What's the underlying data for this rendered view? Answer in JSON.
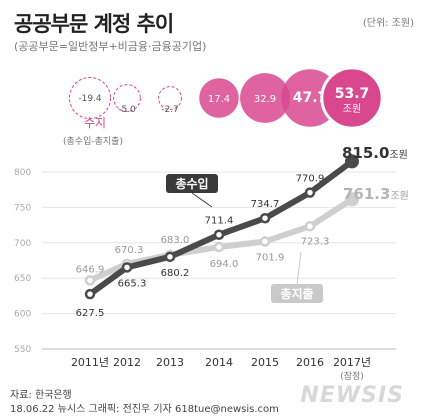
{
  "header": {
    "title": "공공부문 계정 추이",
    "unit": "(단위: 조원)",
    "subtitle": "(공공부문=일반정부+비금융·금융공기업)"
  },
  "balance": {
    "label": "수지",
    "sublabel": "(총수입-총지출)",
    "unit_on_last": "조원",
    "values": [
      -19.4,
      -5.0,
      -2.7,
      17.4,
      32.9,
      47.7,
      53.7
    ],
    "value_labels": [
      "-19.4",
      "-5.0",
      "-2.7",
      "17.4",
      "32.9",
      "47.7",
      "53.7"
    ],
    "colors": {
      "positive": "#d9488f",
      "negative_stroke": "#d9488f"
    }
  },
  "chart_data": {
    "type": "line",
    "categories": [
      "2011년",
      "2012",
      "2013",
      "2014",
      "2015",
      "2016",
      "2017년"
    ],
    "category_note": "(잠정)",
    "ylim": [
      550,
      800
    ],
    "yticks": [
      550,
      600,
      650,
      700,
      750,
      800
    ],
    "grid": true,
    "series": [
      {
        "name": "총수입",
        "values": [
          627.5,
          665.3,
          680.2,
          711.4,
          734.7,
          770.9,
          815.0
        ],
        "labels": [
          "627.5",
          "665.3",
          "680.2",
          "711.4",
          "734.7",
          "770.9",
          "815.0"
        ],
        "last_unit": "조원",
        "color": "#4a4a4a"
      },
      {
        "name": "총지출",
        "values": [
          646.9,
          670.3,
          683.0,
          694.0,
          701.9,
          723.3,
          761.3
        ],
        "labels": [
          "646.9",
          "670.3",
          "683.0",
          "694.0",
          "701.9",
          "723.3",
          "761.3"
        ],
        "last_unit": "조원",
        "color": "#cfcfcf"
      }
    ]
  },
  "footer": {
    "source": "자료: 한국은행",
    "credit": "18.06.22 뉴시스 그래픽: 전진우 기자 618tue@newsis.com"
  },
  "logo": "NEWSIS"
}
